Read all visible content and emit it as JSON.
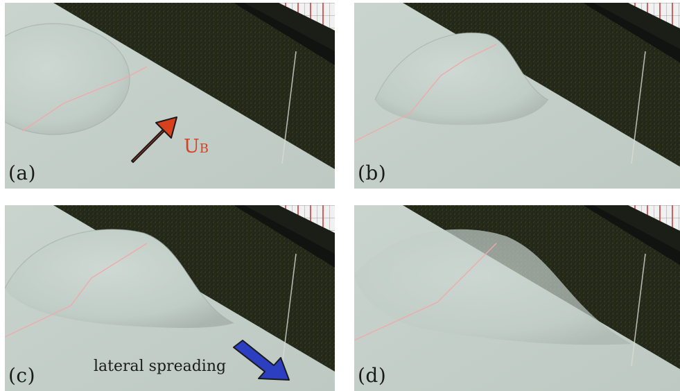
{
  "panels": [
    {
      "id": "a",
      "label": "(a)"
    },
    {
      "id": "b",
      "label": "(b)"
    },
    {
      "id": "c",
      "label": "(c)"
    },
    {
      "id": "d",
      "label": "(d)"
    }
  ],
  "annotations": {
    "flow_arrow": {
      "letter": "U",
      "subscript": "B",
      "color": "#d9401e",
      "icon": "arrow-up-right-icon"
    },
    "spreading_arrow": {
      "text": "lateral spreading",
      "color": "#2b3fc0",
      "icon": "arrow-down-right-icon"
    }
  },
  "colors": {
    "surface": "#c3d0c9",
    "background_wall": "#23271a",
    "laser_line": "#f1a9ad",
    "tile_grid": "#f4f4f4",
    "tile_red_lines": "#c2332f"
  }
}
